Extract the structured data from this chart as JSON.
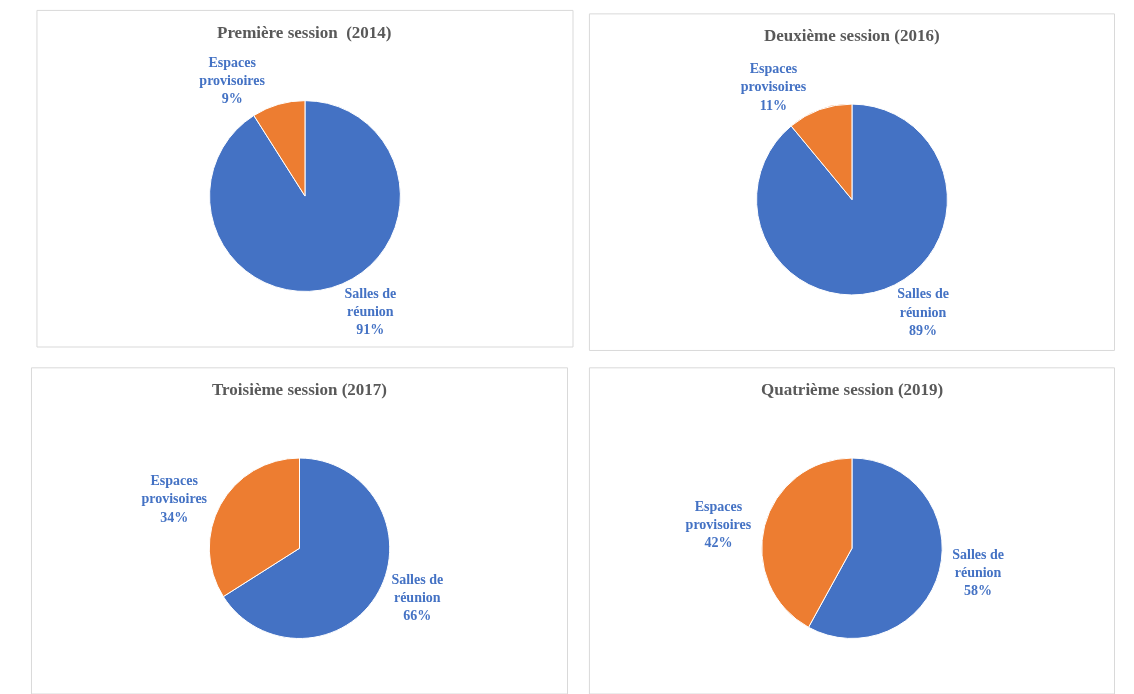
{
  "chart_data": [
    {
      "type": "pie",
      "title": "Première session  (2014)",
      "categories": [
        "Salles de réunion",
        "Espaces provisoires"
      ],
      "values": [
        91,
        9
      ],
      "colors": [
        "#4472c4",
        "#ed7d31"
      ],
      "value_labels": [
        "91%",
        "9%"
      ],
      "legend": false
    },
    {
      "type": "pie",
      "title": "Deuxième session (2016)",
      "categories": [
        "Salles de réunion",
        "Espaces provisoires"
      ],
      "values": [
        89,
        11
      ],
      "colors": [
        "#4472c4",
        "#ed7d31"
      ],
      "value_labels": [
        "89%",
        "11%"
      ],
      "legend": false
    },
    {
      "type": "pie",
      "title": "Troisième session (2017)",
      "categories": [
        "Salles de réunion",
        "Espaces provisoires"
      ],
      "values": [
        66,
        34
      ],
      "colors": [
        "#4472c4",
        "#ed7d31"
      ],
      "value_labels": [
        "66%",
        "34%"
      ],
      "legend": false
    },
    {
      "type": "pie",
      "title": "Quatrième session (2019)",
      "categories": [
        "Salles de réunion",
        "Espaces provisoires"
      ],
      "values": [
        58,
        42
      ],
      "colors": [
        "#4472c4",
        "#ed7d31"
      ],
      "value_labels": [
        "58%",
        "42%"
      ],
      "legend": false
    }
  ]
}
